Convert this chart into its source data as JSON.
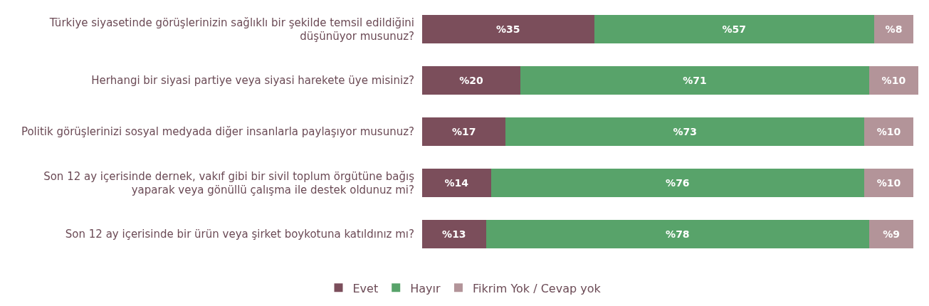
{
  "chart_data": {
    "type": "bar",
    "orientation": "horizontal",
    "stacked": true,
    "legend": "bottom",
    "tick_labels": "y",
    "xlim": [
      0,
      101
    ],
    "categories": [
      "Türkiye siyasetinde görüşlerinizin sağlıklı bir şekilde temsil edildiğini\ndüşünüyor musunuz?",
      "Herhangi bir siyasi partiye veya siyasi harekete üye misiniz?",
      "Politik görüşlerinizi sosyal medyada diğer insanlarla paylaşıyor musunuz?",
      "Son 12 ay içerisinde dernek, vakıf gibi bir sivil toplum örgütüne bağış\nyaparak veya gönüllü çalışma ile destek oldunuz mi?",
      "Son 12 ay içerisinde bir ürün veya şirket boykotuna katıldınız mı?"
    ],
    "series": [
      {
        "name": "Evet",
        "color": "#7b4e5b",
        "values": [
          35,
          20,
          17,
          14,
          13
        ],
        "value_labels": [
          "%35",
          "%20",
          "%17",
          "%14",
          "%13"
        ]
      },
      {
        "name": "Hayır",
        "color": "#58a36a",
        "values": [
          57,
          71,
          73,
          76,
          78
        ],
        "value_labels": [
          "%57",
          "%71",
          "%73",
          "%76",
          "%78"
        ]
      },
      {
        "name": "Fikrim Yok / Cevap yok",
        "color": "#b39499",
        "values": [
          8,
          10,
          10,
          10,
          9
        ],
        "value_labels": [
          "%8",
          "%10",
          "%10",
          "%10",
          "%9"
        ]
      }
    ]
  }
}
